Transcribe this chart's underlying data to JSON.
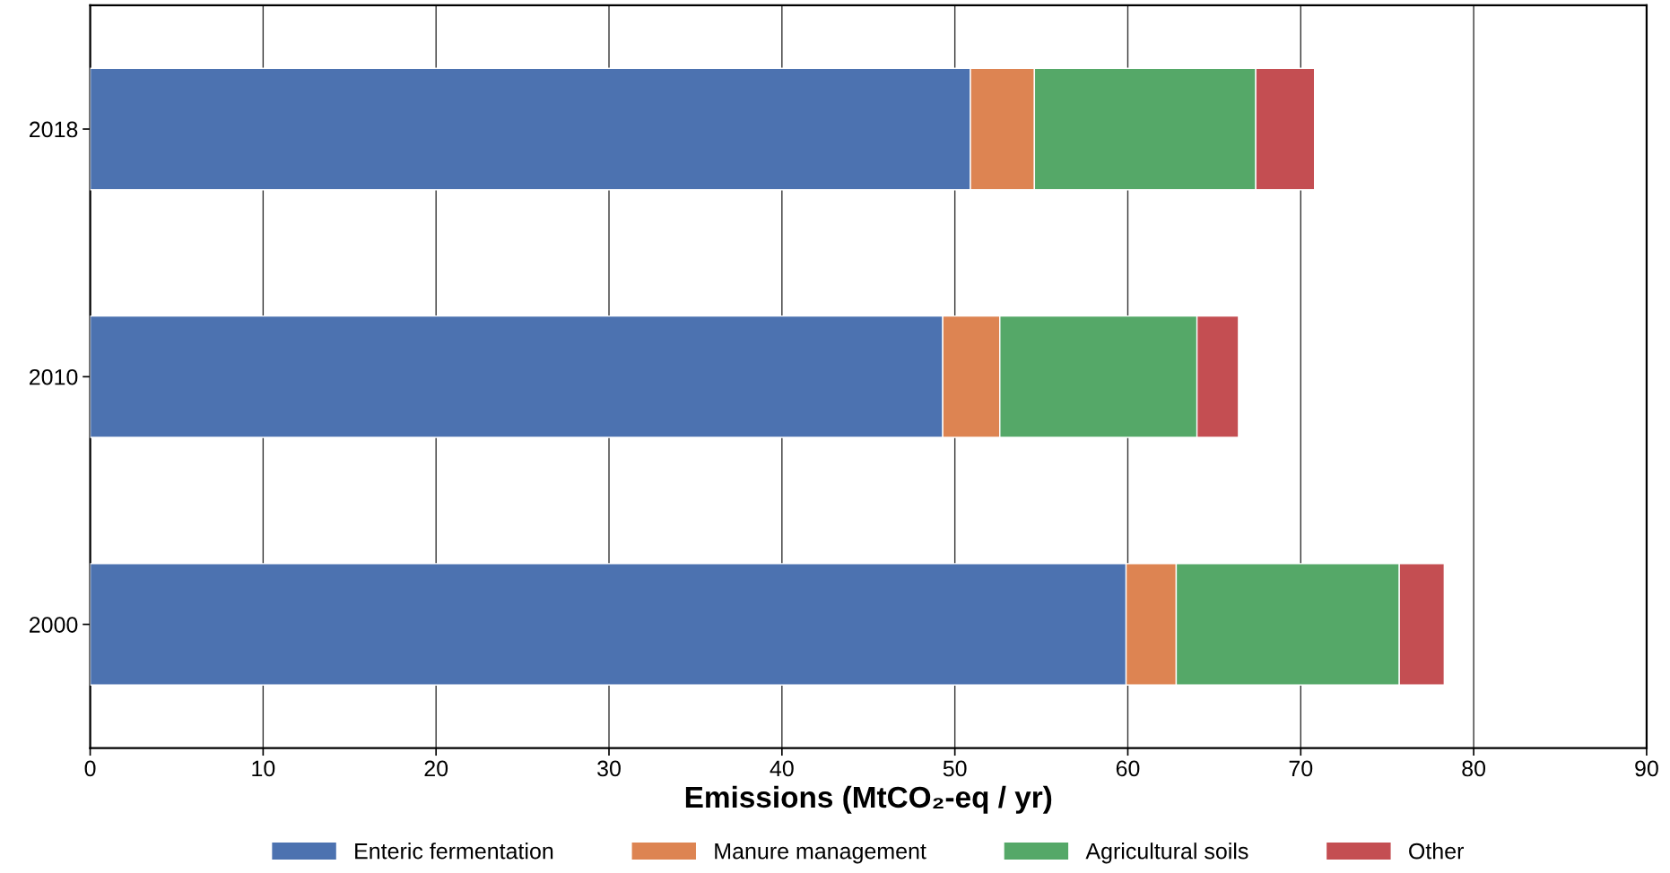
{
  "chart_data": {
    "type": "bar",
    "orientation": "horizontal",
    "stacked": true,
    "categories": [
      "2018",
      "2010",
      "2000"
    ],
    "series": [
      {
        "name": "Enteric fermentation",
        "color": "#4c72b0",
        "values": [
          50.9,
          49.3,
          59.9
        ]
      },
      {
        "name": "Manure management",
        "color": "#dd8452",
        "values": [
          3.7,
          3.3,
          2.9
        ]
      },
      {
        "name": "Agricultural soils",
        "color": "#55a868",
        "values": [
          12.8,
          11.4,
          12.9
        ]
      },
      {
        "name": "Other",
        "color": "#c44e52",
        "values": [
          3.4,
          2.4,
          2.6
        ]
      }
    ],
    "xlabel": "Emissions (MtCO₂-eq / yr)",
    "xlim": [
      0,
      90
    ],
    "xticks": [
      0,
      10,
      20,
      30,
      40,
      50,
      60,
      70,
      80,
      90
    ],
    "grid": "x",
    "legend": "bottom"
  }
}
